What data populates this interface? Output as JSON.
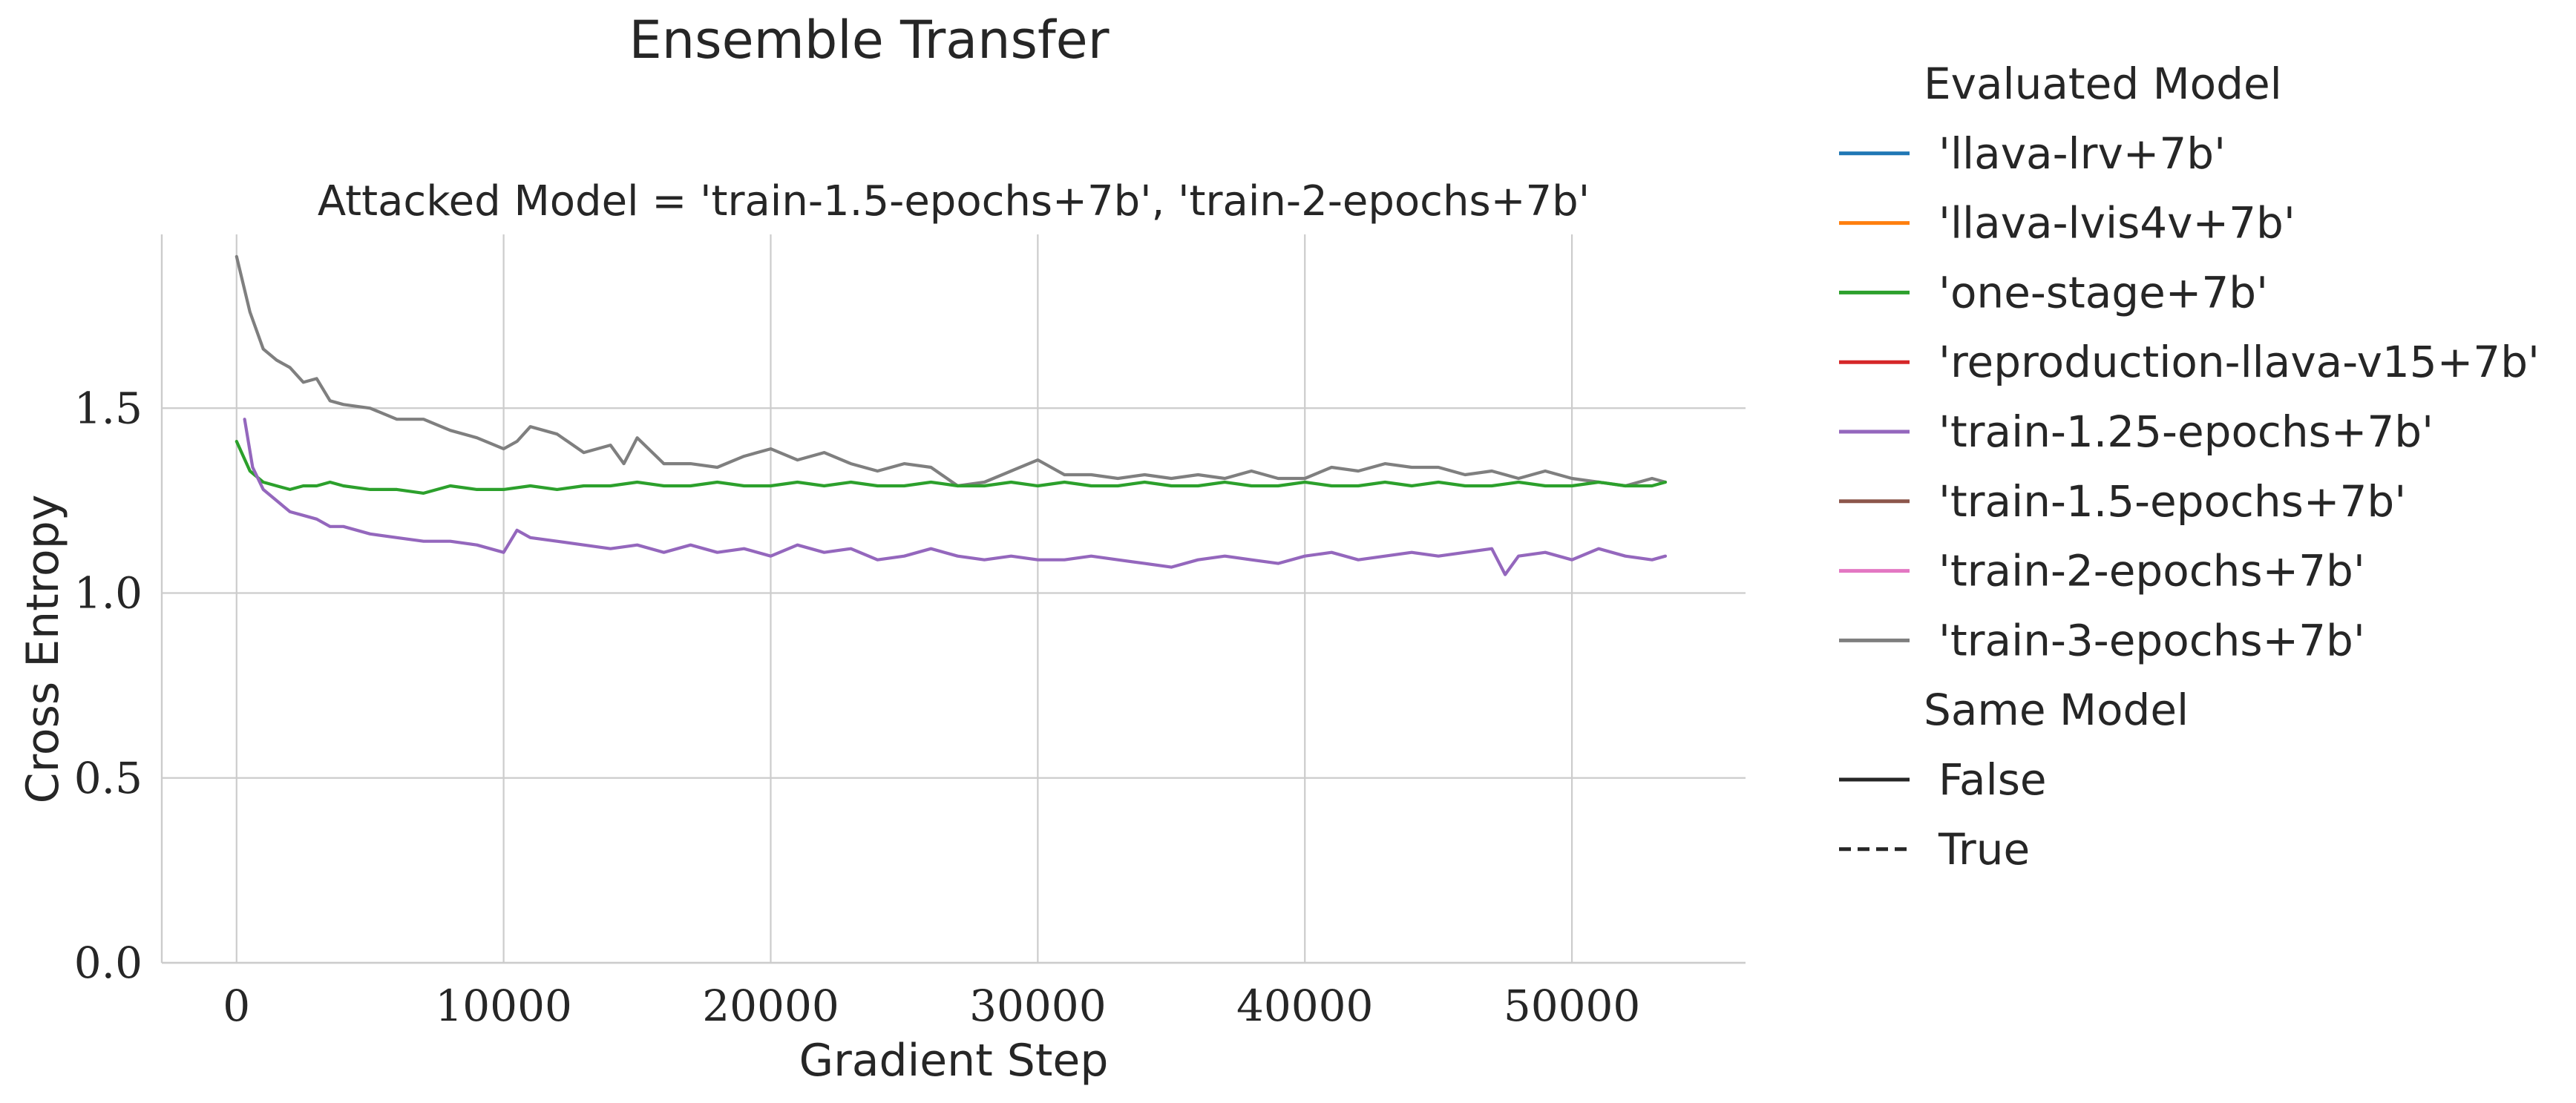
{
  "chart_data": {
    "type": "line",
    "title": "Ensemble Transfer",
    "subtitle": "Attacked Model = 'train-1.5-epochs+7b', 'train-2-epochs+7b'",
    "xlabel": "Gradient Step",
    "ylabel": "Cross Entropy",
    "xlim": [
      -2800,
      56500
    ],
    "ylim": [
      0.0,
      1.97
    ],
    "xticks": [
      0,
      10000,
      20000,
      30000,
      40000,
      50000
    ],
    "xtick_labels": [
      "0",
      "10000",
      "20000",
      "30000",
      "40000",
      "50000"
    ],
    "yticks": [
      0.0,
      0.5,
      1.0,
      1.5
    ],
    "ytick_labels": [
      "0.0",
      "0.5",
      "1.0",
      "1.5"
    ],
    "grid": true,
    "legend": {
      "placement": "right-outside",
      "hue_title": "Evaluated Model",
      "hue_entries": [
        {
          "label": "'llava-lrv+7b'",
          "color": "#1f77b4"
        },
        {
          "label": "'llava-lvis4v+7b'",
          "color": "#ff7f0e"
        },
        {
          "label": "'one-stage+7b'",
          "color": "#2ca02c"
        },
        {
          "label": "'reproduction-llava-v15+7b'",
          "color": "#d62728"
        },
        {
          "label": "'train-1.25-epochs+7b'",
          "color": "#9467bd"
        },
        {
          "label": "'train-1.5-epochs+7b'",
          "color": "#8c564b"
        },
        {
          "label": "'train-2-epochs+7b'",
          "color": "#e377c2"
        },
        {
          "label": "'train-3-epochs+7b'",
          "color": "#7f7f7f"
        }
      ],
      "style_title": "Same Model",
      "style_entries": [
        {
          "label": "False",
          "dash": "solid"
        },
        {
          "label": "True",
          "dash": "dashed"
        }
      ]
    },
    "series": [
      {
        "name": "'train-3-epochs+7b'",
        "color": "#7f7f7f",
        "dash": "solid",
        "x": [
          0,
          500,
          1000,
          1500,
          2000,
          2500,
          3000,
          3500,
          4000,
          5000,
          6000,
          7000,
          8000,
          9000,
          10000,
          10500,
          11000,
          12000,
          13000,
          14000,
          14500,
          15000,
          16000,
          17000,
          18000,
          19000,
          20000,
          21000,
          22000,
          23000,
          24000,
          25000,
          26000,
          27000,
          28000,
          29000,
          30000,
          31000,
          32000,
          33000,
          34000,
          35000,
          36000,
          37000,
          38000,
          39000,
          40000,
          41000,
          42000,
          43000,
          44000,
          45000,
          46000,
          47000,
          48000,
          49000,
          50000,
          51000,
          52000,
          53000,
          53500
        ],
        "y": [
          1.91,
          1.76,
          1.66,
          1.63,
          1.61,
          1.57,
          1.58,
          1.52,
          1.51,
          1.5,
          1.47,
          1.47,
          1.44,
          1.42,
          1.39,
          1.41,
          1.45,
          1.43,
          1.38,
          1.4,
          1.35,
          1.42,
          1.35,
          1.35,
          1.34,
          1.37,
          1.39,
          1.36,
          1.38,
          1.35,
          1.33,
          1.35,
          1.34,
          1.29,
          1.3,
          1.33,
          1.36,
          1.32,
          1.32,
          1.31,
          1.32,
          1.31,
          1.32,
          1.31,
          1.33,
          1.31,
          1.31,
          1.34,
          1.33,
          1.35,
          1.34,
          1.34,
          1.32,
          1.33,
          1.31,
          1.33,
          1.31,
          1.3,
          1.29,
          1.31,
          1.3
        ]
      },
      {
        "name": "'one-stage+7b'",
        "color": "#2ca02c",
        "dash": "solid",
        "x": [
          0,
          500,
          1000,
          1500,
          2000,
          2500,
          3000,
          3500,
          4000,
          5000,
          6000,
          7000,
          8000,
          9000,
          10000,
          11000,
          12000,
          13000,
          14000,
          15000,
          16000,
          17000,
          18000,
          19000,
          20000,
          21000,
          22000,
          23000,
          24000,
          25000,
          26000,
          27000,
          28000,
          29000,
          30000,
          31000,
          32000,
          33000,
          34000,
          35000,
          36000,
          37000,
          38000,
          39000,
          40000,
          41000,
          42000,
          43000,
          44000,
          45000,
          46000,
          47000,
          48000,
          49000,
          50000,
          51000,
          52000,
          53000,
          53500
        ],
        "y": [
          1.41,
          1.33,
          1.3,
          1.29,
          1.28,
          1.29,
          1.29,
          1.3,
          1.29,
          1.28,
          1.28,
          1.27,
          1.29,
          1.28,
          1.28,
          1.29,
          1.28,
          1.29,
          1.29,
          1.3,
          1.29,
          1.29,
          1.3,
          1.29,
          1.29,
          1.3,
          1.29,
          1.3,
          1.29,
          1.29,
          1.3,
          1.29,
          1.29,
          1.3,
          1.29,
          1.3,
          1.29,
          1.29,
          1.3,
          1.29,
          1.29,
          1.3,
          1.29,
          1.29,
          1.3,
          1.29,
          1.29,
          1.3,
          1.29,
          1.3,
          1.29,
          1.29,
          1.3,
          1.29,
          1.29,
          1.3,
          1.29,
          1.29,
          1.3
        ]
      },
      {
        "name": "'train-1.25-epochs+7b'",
        "color": "#9467bd",
        "dash": "solid",
        "x": [
          300,
          600,
          1000,
          1500,
          2000,
          2500,
          3000,
          3500,
          4000,
          5000,
          6000,
          7000,
          8000,
          9000,
          10000,
          10500,
          11000,
          12000,
          13000,
          14000,
          15000,
          16000,
          17000,
          18000,
          19000,
          20000,
          21000,
          22000,
          23000,
          24000,
          25000,
          26000,
          27000,
          28000,
          29000,
          30000,
          31000,
          32000,
          33000,
          34000,
          35000,
          36000,
          37000,
          38000,
          39000,
          40000,
          41000,
          42000,
          43000,
          44000,
          45000,
          46000,
          47000,
          47500,
          48000,
          49000,
          50000,
          51000,
          52000,
          53000,
          53500
        ],
        "y": [
          1.47,
          1.34,
          1.28,
          1.25,
          1.22,
          1.21,
          1.2,
          1.18,
          1.18,
          1.16,
          1.15,
          1.14,
          1.14,
          1.13,
          1.11,
          1.17,
          1.15,
          1.14,
          1.13,
          1.12,
          1.13,
          1.11,
          1.13,
          1.11,
          1.12,
          1.1,
          1.13,
          1.11,
          1.12,
          1.09,
          1.1,
          1.12,
          1.1,
          1.09,
          1.1,
          1.09,
          1.09,
          1.1,
          1.09,
          1.08,
          1.07,
          1.09,
          1.1,
          1.09,
          1.08,
          1.1,
          1.11,
          1.09,
          1.1,
          1.11,
          1.1,
          1.11,
          1.12,
          1.05,
          1.1,
          1.11,
          1.09,
          1.12,
          1.1,
          1.09,
          1.1
        ]
      }
    ]
  }
}
